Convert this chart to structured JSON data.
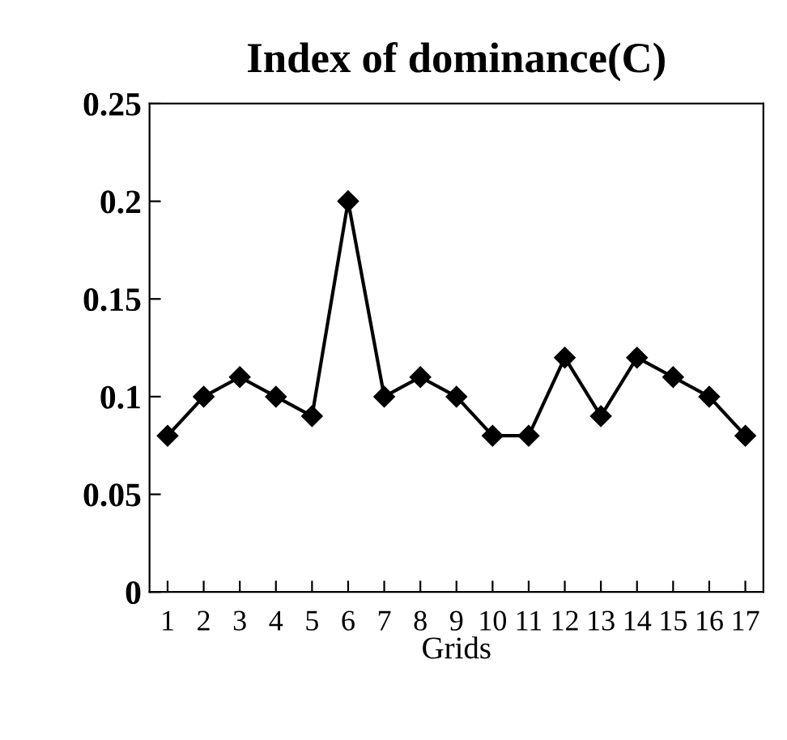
{
  "chart_data": {
    "type": "line",
    "title": "Index of dominance(C)",
    "xlabel": "Grids",
    "categories": [
      "1",
      "2",
      "3",
      "4",
      "5",
      "6",
      "7",
      "8",
      "9",
      "10",
      "11",
      "12",
      "13",
      "14",
      "15",
      "16",
      "17"
    ],
    "series": [
      {
        "color": "#000000",
        "values": [
          0.08,
          0.1,
          0.11,
          0.1,
          0.09,
          0.2,
          0.1,
          0.11,
          0.1,
          0.08,
          0.08,
          0.12,
          0.09,
          0.12,
          0.11,
          0.1,
          0.08
        ]
      }
    ],
    "ylim": [
      0,
      0.25
    ],
    "yticks": [
      0,
      0.05,
      0.1,
      0.15,
      0.2,
      0.25
    ],
    "grid": false,
    "legend": false,
    "marker": "diamond",
    "line_style": "solid"
  }
}
